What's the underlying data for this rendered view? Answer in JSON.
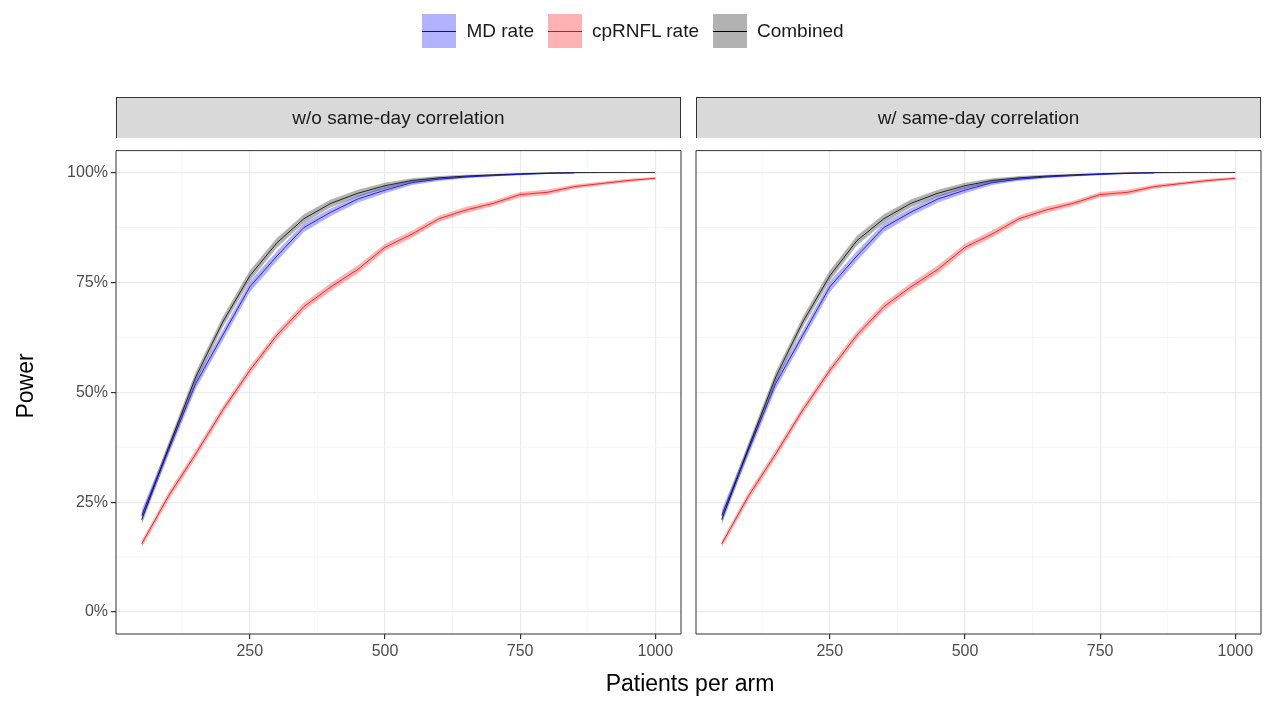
{
  "chart_data": [
    {
      "type": "line",
      "title": "w/o same-day correlation",
      "xlabel": "Patients per arm",
      "ylabel": "Power",
      "legend": "top",
      "grid": true,
      "x": [
        50,
        100,
        150,
        200,
        250,
        300,
        350,
        400,
        450,
        500,
        550,
        600,
        650,
        700,
        750,
        800,
        850,
        900,
        950,
        1000
      ],
      "xlim": [
        2.5,
        1047.5
      ],
      "xticks": [
        250,
        500,
        750,
        1000
      ],
      "ylim": [
        -5,
        105
      ],
      "yticks": [
        {
          "value": 0,
          "label": "0%"
        },
        {
          "value": 25,
          "label": "25%"
        },
        {
          "value": 50,
          "label": "50%"
        },
        {
          "value": 75,
          "label": "75%"
        },
        {
          "value": 100,
          "label": "100%"
        }
      ],
      "series": [
        {
          "name": "MD rate",
          "color": "#0000ff",
          "values": [
            22,
            37,
            52,
            63,
            74,
            81,
            87.5,
            91,
            94,
            96,
            97.7,
            98.5,
            99,
            99.3,
            99.6,
            99.8,
            99.9,
            null,
            null,
            null
          ],
          "lower": [
            20.8,
            35.8,
            50.8,
            61.8,
            72.8,
            79.9,
            86.5,
            90.1,
            93.2,
            95.3,
            97.2,
            98.1,
            98.7,
            99.1,
            99.4,
            99.7,
            99.8,
            99.9,
            100,
            100
          ],
          "upper": [
            23.2,
            38.2,
            53.2,
            64.2,
            75.2,
            82.1,
            88.5,
            91.9,
            94.8,
            96.7,
            98.2,
            98.9,
            99.3,
            99.5,
            99.8,
            99.9,
            100,
            100,
            100,
            100
          ]
        },
        {
          "name": "cpRNFL rate",
          "color": "#ff0000",
          "values": [
            15.5,
            26.5,
            36,
            46,
            55,
            63,
            69.5,
            74,
            78,
            83,
            86,
            89.5,
            91.5,
            93,
            95,
            95.5,
            96.8,
            97.5,
            98.2,
            98.7
          ],
          "lower": [
            14.7,
            25.6,
            35.1,
            45.1,
            54.1,
            62.1,
            68.6,
            73.1,
            77.1,
            82.2,
            85.2,
            88.8,
            90.8,
            92.4,
            94.4,
            94.9,
            96.3,
            97.1,
            97.8,
            98.4
          ],
          "upper": [
            16.3,
            27.4,
            36.9,
            46.9,
            55.9,
            63.9,
            70.4,
            74.9,
            78.9,
            83.8,
            86.8,
            90.2,
            92.2,
            93.6,
            95.6,
            96.1,
            97.3,
            97.9,
            98.6,
            99
          ]
        },
        {
          "name": "Combined",
          "color": "#000000",
          "values": [
            21,
            37.5,
            53.5,
            66,
            76.5,
            84,
            89.5,
            93,
            95.3,
            97,
            98.2,
            98.8,
            99.2,
            99.5,
            99.7,
            99.9,
            100,
            100,
            100,
            100
          ],
          "lower": [
            19.8,
            36.3,
            52.3,
            64.8,
            75.3,
            82.9,
            88.5,
            92.1,
            94.5,
            96.3,
            97.7,
            98.4,
            98.9,
            99.3,
            99.5,
            99.8,
            99.9,
            100,
            100,
            100
          ],
          "upper": [
            22.2,
            38.7,
            54.7,
            67.2,
            77.7,
            85.1,
            90.5,
            93.9,
            96.1,
            97.7,
            98.7,
            99.2,
            99.5,
            99.7,
            99.9,
            100,
            100,
            100,
            100,
            100
          ]
        }
      ]
    },
    {
      "type": "line",
      "title": "w/ same-day correlation",
      "grid": true,
      "tick_labels": "x",
      "x": [
        50,
        100,
        150,
        200,
        250,
        300,
        350,
        400,
        450,
        500,
        550,
        600,
        650,
        700,
        750,
        800,
        850,
        900,
        950,
        1000
      ],
      "xlim": [
        2.5,
        1047.5
      ],
      "xticks": [
        250,
        500,
        750,
        1000
      ],
      "ylim": [
        -5,
        105
      ],
      "yticks": [
        {
          "value": 0,
          "label": null
        },
        {
          "value": 25,
          "label": null
        },
        {
          "value": 50,
          "label": null
        },
        {
          "value": 75,
          "label": null
        },
        {
          "value": 100,
          "label": null
        }
      ],
      "series": [
        {
          "color": "#0000ff",
          "values": [
            22,
            37,
            52,
            63,
            74,
            81,
            87.5,
            91,
            94,
            96,
            97.7,
            98.5,
            99,
            99.3,
            99.6,
            99.8,
            99.9,
            null,
            null,
            null
          ],
          "lower": [
            20.8,
            35.8,
            50.8,
            61.8,
            72.8,
            79.9,
            86.5,
            90.1,
            93.2,
            95.3,
            97.2,
            98.1,
            98.7,
            99.1,
            99.4,
            99.7,
            99.8,
            99.9,
            100,
            100
          ],
          "upper": [
            23.2,
            38.2,
            53.2,
            64.2,
            75.2,
            82.1,
            88.5,
            91.9,
            94.8,
            96.7,
            98.2,
            98.9,
            99.3,
            99.5,
            99.8,
            99.9,
            100,
            100,
            100,
            100
          ]
        },
        {
          "color": "#ff0000",
          "values": [
            15.5,
            26.5,
            36,
            46,
            55,
            63,
            69.5,
            74,
            78,
            83,
            86,
            89.5,
            91.5,
            93,
            95,
            95.5,
            96.8,
            97.5,
            98.2,
            98.7
          ],
          "lower": [
            14.7,
            25.6,
            35.1,
            45.1,
            54.1,
            62.1,
            68.6,
            73.1,
            77.1,
            82.2,
            85.2,
            88.8,
            90.8,
            92.4,
            94.4,
            94.9,
            96.3,
            97.1,
            97.8,
            98.4
          ],
          "upper": [
            16.3,
            27.4,
            36.9,
            46.9,
            55.9,
            63.9,
            70.4,
            74.9,
            78.9,
            83.8,
            86.8,
            90.2,
            92.2,
            93.6,
            95.6,
            96.1,
            97.3,
            97.9,
            98.6,
            99
          ]
        },
        {
          "color": "#000000",
          "values": [
            21,
            37.5,
            53.5,
            66,
            76.5,
            84.5,
            89.5,
            93,
            95.3,
            97,
            98.2,
            98.8,
            99.2,
            99.5,
            99.7,
            99.9,
            100,
            100,
            100,
            100
          ],
          "lower": [
            19.8,
            36.3,
            52.3,
            64.8,
            75.3,
            83.4,
            88.5,
            92.1,
            94.5,
            96.3,
            97.7,
            98.4,
            98.9,
            99.3,
            99.5,
            99.8,
            99.9,
            100,
            100,
            100
          ],
          "upper": [
            22.2,
            38.7,
            54.7,
            67.2,
            77.7,
            85.6,
            90.5,
            93.9,
            96.1,
            97.7,
            98.7,
            99.2,
            99.5,
            99.7,
            99.9,
            100,
            100,
            100,
            100,
            100
          ]
        }
      ]
    }
  ]
}
